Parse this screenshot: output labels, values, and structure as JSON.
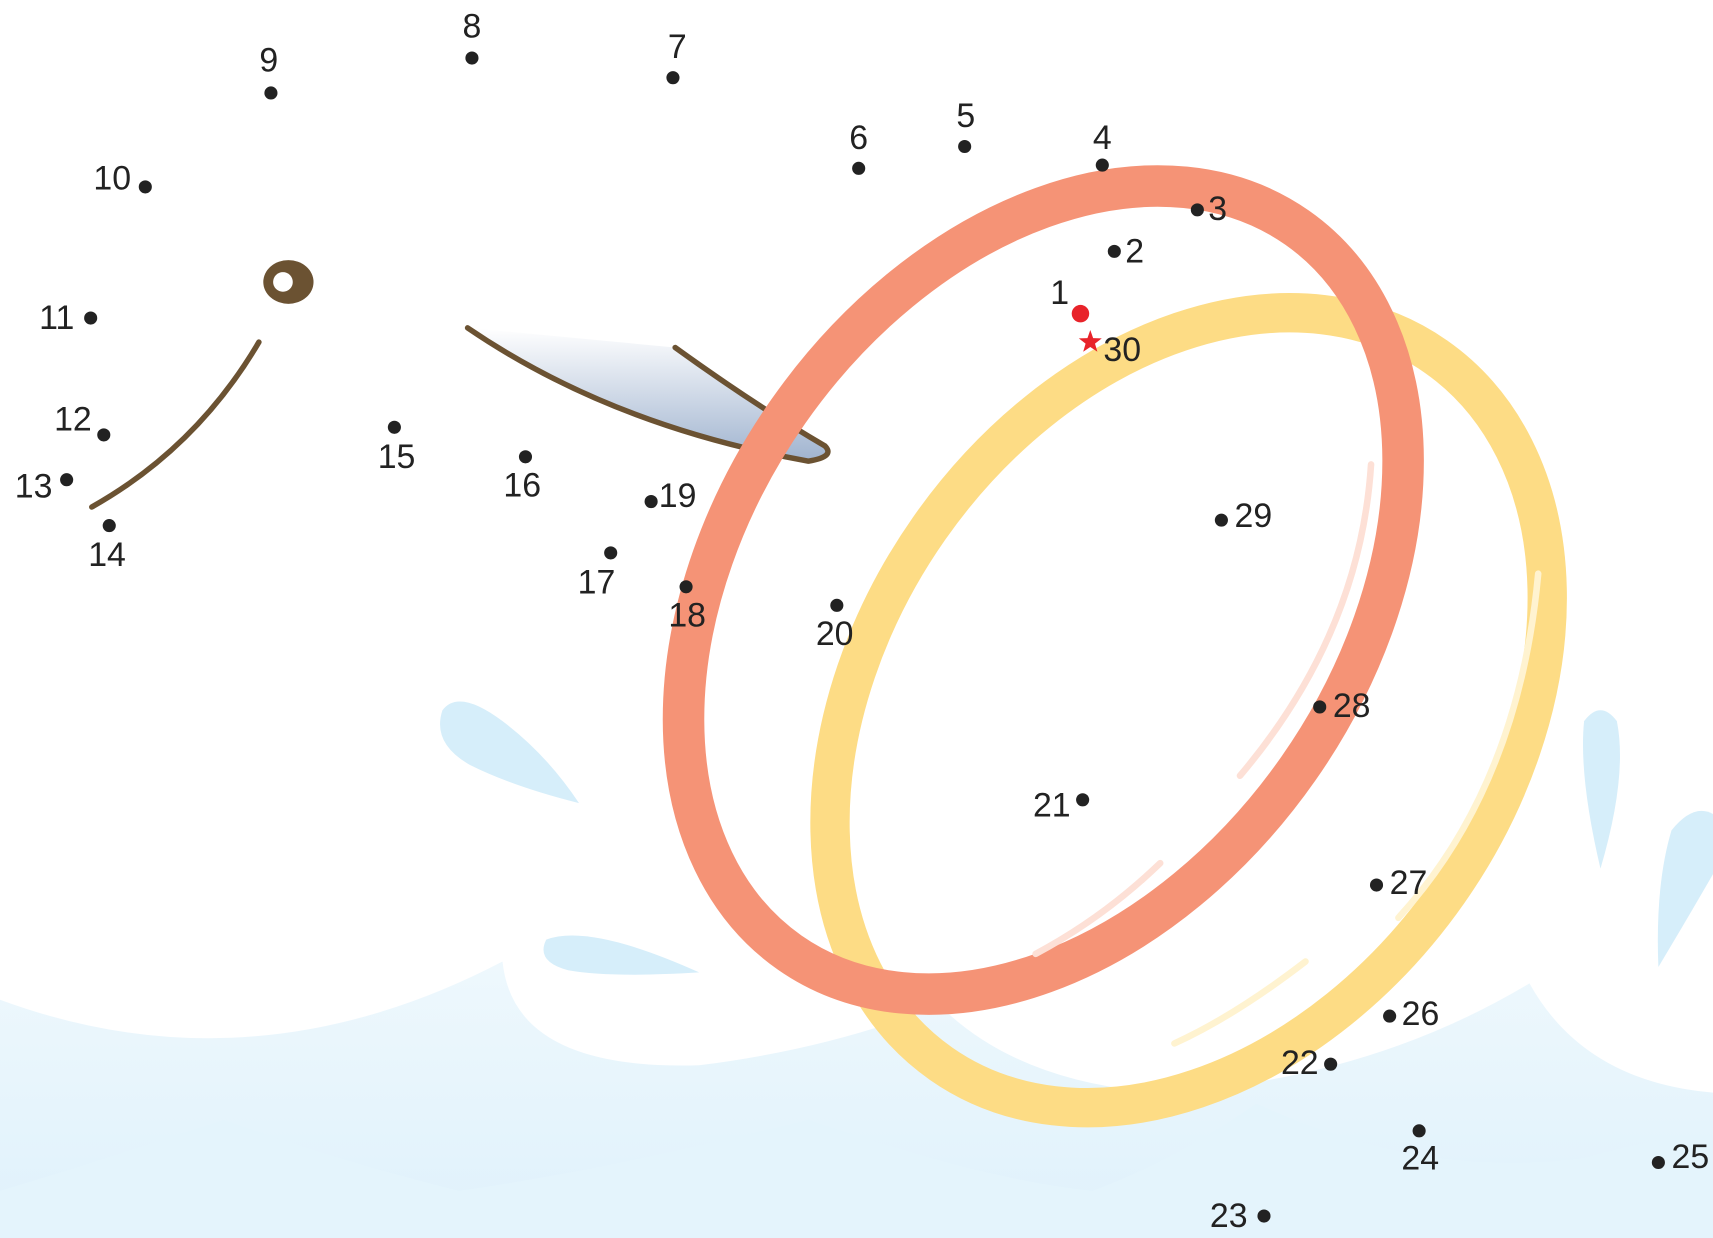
{
  "dots": [
    "1",
    "2",
    "3",
    "4",
    "5",
    "6",
    "7",
    "8",
    "9",
    "10",
    "11",
    "12",
    "13",
    "14",
    "15",
    "16",
    "17",
    "18",
    "19",
    "20",
    "21",
    "22",
    "23",
    "24",
    "25",
    "26",
    "27",
    "28",
    "29",
    "30"
  ]
}
